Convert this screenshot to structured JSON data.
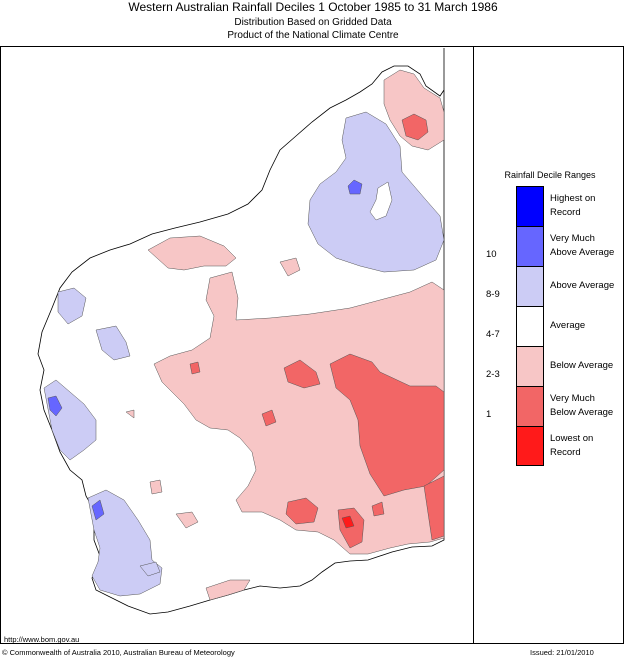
{
  "header": {
    "title": "Western Australian Rainfall Deciles      1 October 1985 to 31 March 1986",
    "subtitle1": "Distribution Based on Gridded Data",
    "subtitle2": "Product of the National Climate Centre"
  },
  "legend": {
    "title": "Rainfall Decile Ranges",
    "items": [
      {
        "color": "#0000ff",
        "line1": "Highest on",
        "line2": "Record",
        "range": ""
      },
      {
        "color": "#6666ff",
        "line1": "Very Much",
        "line2": "Above Average",
        "range": "10"
      },
      {
        "color": "#ccccf5",
        "line1": "Above Average",
        "line2": "",
        "range": "8-9"
      },
      {
        "color": "#ffffff",
        "line1": "Average",
        "line2": "",
        "range": "4-7"
      },
      {
        "color": "#f7c6c6",
        "line1": "Below Average",
        "line2": "",
        "range": "2-3"
      },
      {
        "color": "#f26666",
        "line1": "Very Much",
        "line2": "Below Average",
        "range": "1"
      },
      {
        "color": "#ff1a1a",
        "line1": "Lowest on",
        "line2": "Record",
        "range": ""
      }
    ]
  },
  "footer": {
    "url": "http://www.bom.gov.au",
    "copyright": "© Commonwealth of Australia 2010, Australian Bureau of Meteorology",
    "issued": "Issued: 21/01/2010"
  }
}
